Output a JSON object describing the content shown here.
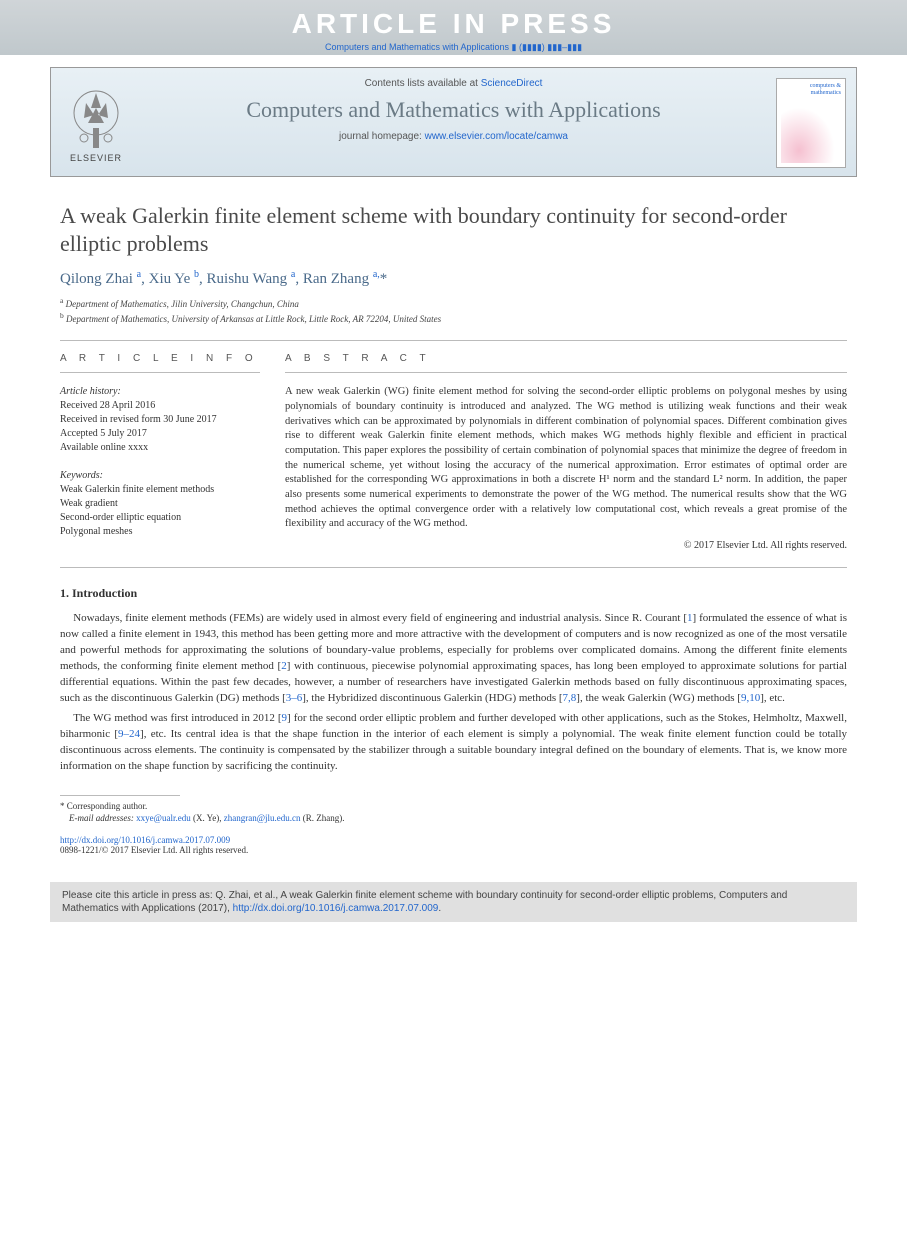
{
  "banner": {
    "text": "ARTICLE IN PRESS",
    "journal_ref": "Computers and Mathematics with Applications ▮ (▮▮▮▮) ▮▮▮–▮▮▮"
  },
  "header": {
    "contents_prefix": "Contents lists available at ",
    "sciencedirect": "ScienceDirect",
    "journal_name": "Computers and Mathematics with Applications",
    "homepage_prefix": "journal homepage: ",
    "homepage_url": "www.elsevier.com/locate/camwa",
    "elsevier_label": "ELSEVIER",
    "cover_text": "computers & mathematics"
  },
  "article": {
    "title": "A weak Galerkin finite element scheme with boundary continuity for second-order elliptic problems",
    "authors_html": "Qilong Zhai <sup>a</sup>, Xiu Ye <sup>b</sup>, Ruishu Wang <sup>a</sup>, Ran Zhang <sup>a,</sup>*",
    "affiliations": {
      "a": "Department of Mathematics, Jilin University, Changchun, China",
      "b": "Department of Mathematics, University of Arkansas at Little Rock, Little Rock, AR 72204, United States"
    }
  },
  "article_info": {
    "heading": "A R T I C L E   I N F O",
    "history_label": "Article history:",
    "received": "Received 28 April 2016",
    "revised": "Received in revised form 30 June 2017",
    "accepted": "Accepted 5 July 2017",
    "online": "Available online xxxx",
    "keywords_label": "Keywords:",
    "keywords": [
      "Weak Galerkin finite element methods",
      "Weak gradient",
      "Second-order elliptic equation",
      "Polygonal meshes"
    ]
  },
  "abstract": {
    "heading": "A B S T R A C T",
    "text": "A new weak Galerkin (WG) finite element method for solving the second-order elliptic problems on polygonal meshes by using polynomials of boundary continuity is introduced and analyzed. The WG method is utilizing weak functions and their weak derivatives which can be approximated by polynomials in different combination of polynomial spaces. Different combination gives rise to different weak Galerkin finite element methods, which makes WG methods highly flexible and efficient in practical computation. This paper explores the possibility of certain combination of polynomial spaces that minimize the degree of freedom in the numerical scheme, yet without losing the accuracy of the numerical approximation. Error estimates of optimal order are established for the corresponding WG approximations in both a discrete H¹ norm and the standard L² norm. In addition, the paper also presents some numerical experiments to demonstrate the power of the WG method. The numerical results show that the WG method achieves the optimal convergence order with a relatively low computational cost, which reveals a great promise of the flexibility and accuracy of the WG method.",
    "copyright": "© 2017 Elsevier Ltd. All rights reserved."
  },
  "sections": {
    "intro_title": "1. Introduction",
    "para1_pre": "Nowadays, finite element methods (FEMs) are widely used in almost every field of engineering and industrial analysis. Since R. Courant [",
    "ref1": "1",
    "para1_mid1": "] formulated the essence of what is now called a finite element in 1943, this method has been getting more and more attractive with the development of computers and is now recognized as one of the most versatile and powerful methods for approximating the solutions of boundary-value problems, especially for problems over complicated domains. Among the different finite elements methods, the conforming finite element method [",
    "ref2": "2",
    "para1_mid2": "] with continuous, piecewise polynomial approximating spaces, has long been employed to approximate solutions for partial differential equations. Within the past few decades, however, a number of researchers have investigated Galerkin methods based on fully discontinuous approximating spaces, such as the discontinuous Galerkin (DG) methods [",
    "ref3_6": "3–6",
    "para1_mid3": "], the Hybridized discontinuous Galerkin (HDG) methods [",
    "ref7_8": "7,8",
    "para1_mid4": "], the weak Galerkin (WG) methods [",
    "ref9_10": "9,10",
    "para1_end": "], etc.",
    "para2_pre": "The WG method was first introduced in 2012 [",
    "ref9": "9",
    "para2_mid1": "] for the second order elliptic problem and further developed with other applications, such as the Stokes, Helmholtz, Maxwell, biharmonic [",
    "ref9_24": "9–24",
    "para2_end": "], etc. Its central idea is that the shape function in the interior of each element is simply a polynomial. The weak finite element function could be totally discontinuous across elements. The continuity is compensated by the stabilizer through a suitable boundary integral defined on the boundary of elements. That is, we know more information on the shape function by sacrificing the continuity."
  },
  "footnotes": {
    "corresponding": "* Corresponding author.",
    "email_label": "E-mail addresses:",
    "email1": "xxye@ualr.edu",
    "email1_name": " (X. Ye), ",
    "email2": "zhangran@jlu.edu.cn",
    "email2_name": " (R. Zhang)."
  },
  "doi": {
    "url": "http://dx.doi.org/10.1016/j.camwa.2017.07.009",
    "copyright": "0898-1221/© 2017 Elsevier Ltd. All rights reserved."
  },
  "citation_box": {
    "text_pre": "Please cite this article in press as: Q. Zhai, et al., A weak Galerkin finite element scheme with boundary continuity for second-order elliptic problems, Computers and Mathematics with Applications (2017), ",
    "doi": "http://dx.doi.org/10.1016/j.camwa.2017.07.009",
    "text_post": "."
  },
  "colors": {
    "link": "#2266cc",
    "banner_bg": "#c8d0d4",
    "header_bg_top": "#e8f0f5",
    "header_bg_bottom": "#d8e4ec",
    "journal_name_color": "#6a7a85",
    "author_color": "#4a6a8a",
    "citation_bg": "#e0e0e0"
  }
}
